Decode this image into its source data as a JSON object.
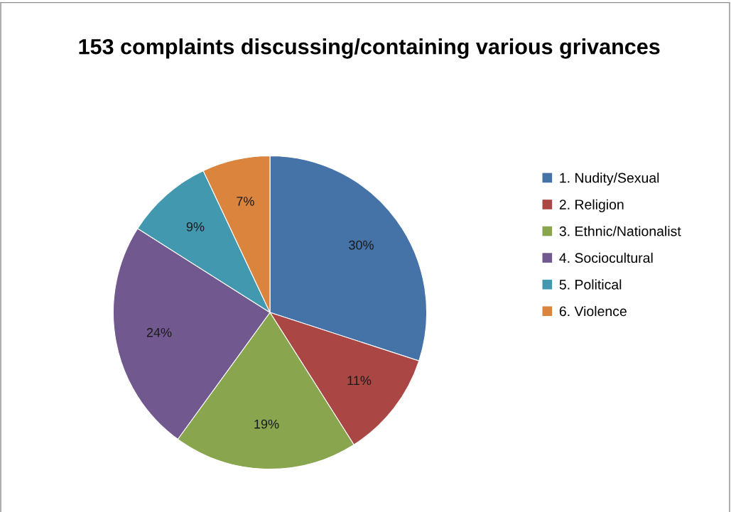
{
  "chart_data": {
    "type": "pie",
    "title": "153 complaints discussing/containing various grivances",
    "categories": [
      "1. Nudity/Sexual",
      "2. Religion",
      "3. Ethnic/Nationalist",
      "4. Sociocultural",
      "5. Political",
      "6. Violence"
    ],
    "values": [
      30,
      11,
      19,
      24,
      9,
      7
    ],
    "colors": [
      "#4572a7",
      "#aa4643",
      "#89a54e",
      "#71588f",
      "#4198af",
      "#db843d"
    ],
    "value_labels": [
      "30%",
      "11%",
      "19%",
      "24%",
      "9%",
      "7%"
    ],
    "legend": "right"
  }
}
